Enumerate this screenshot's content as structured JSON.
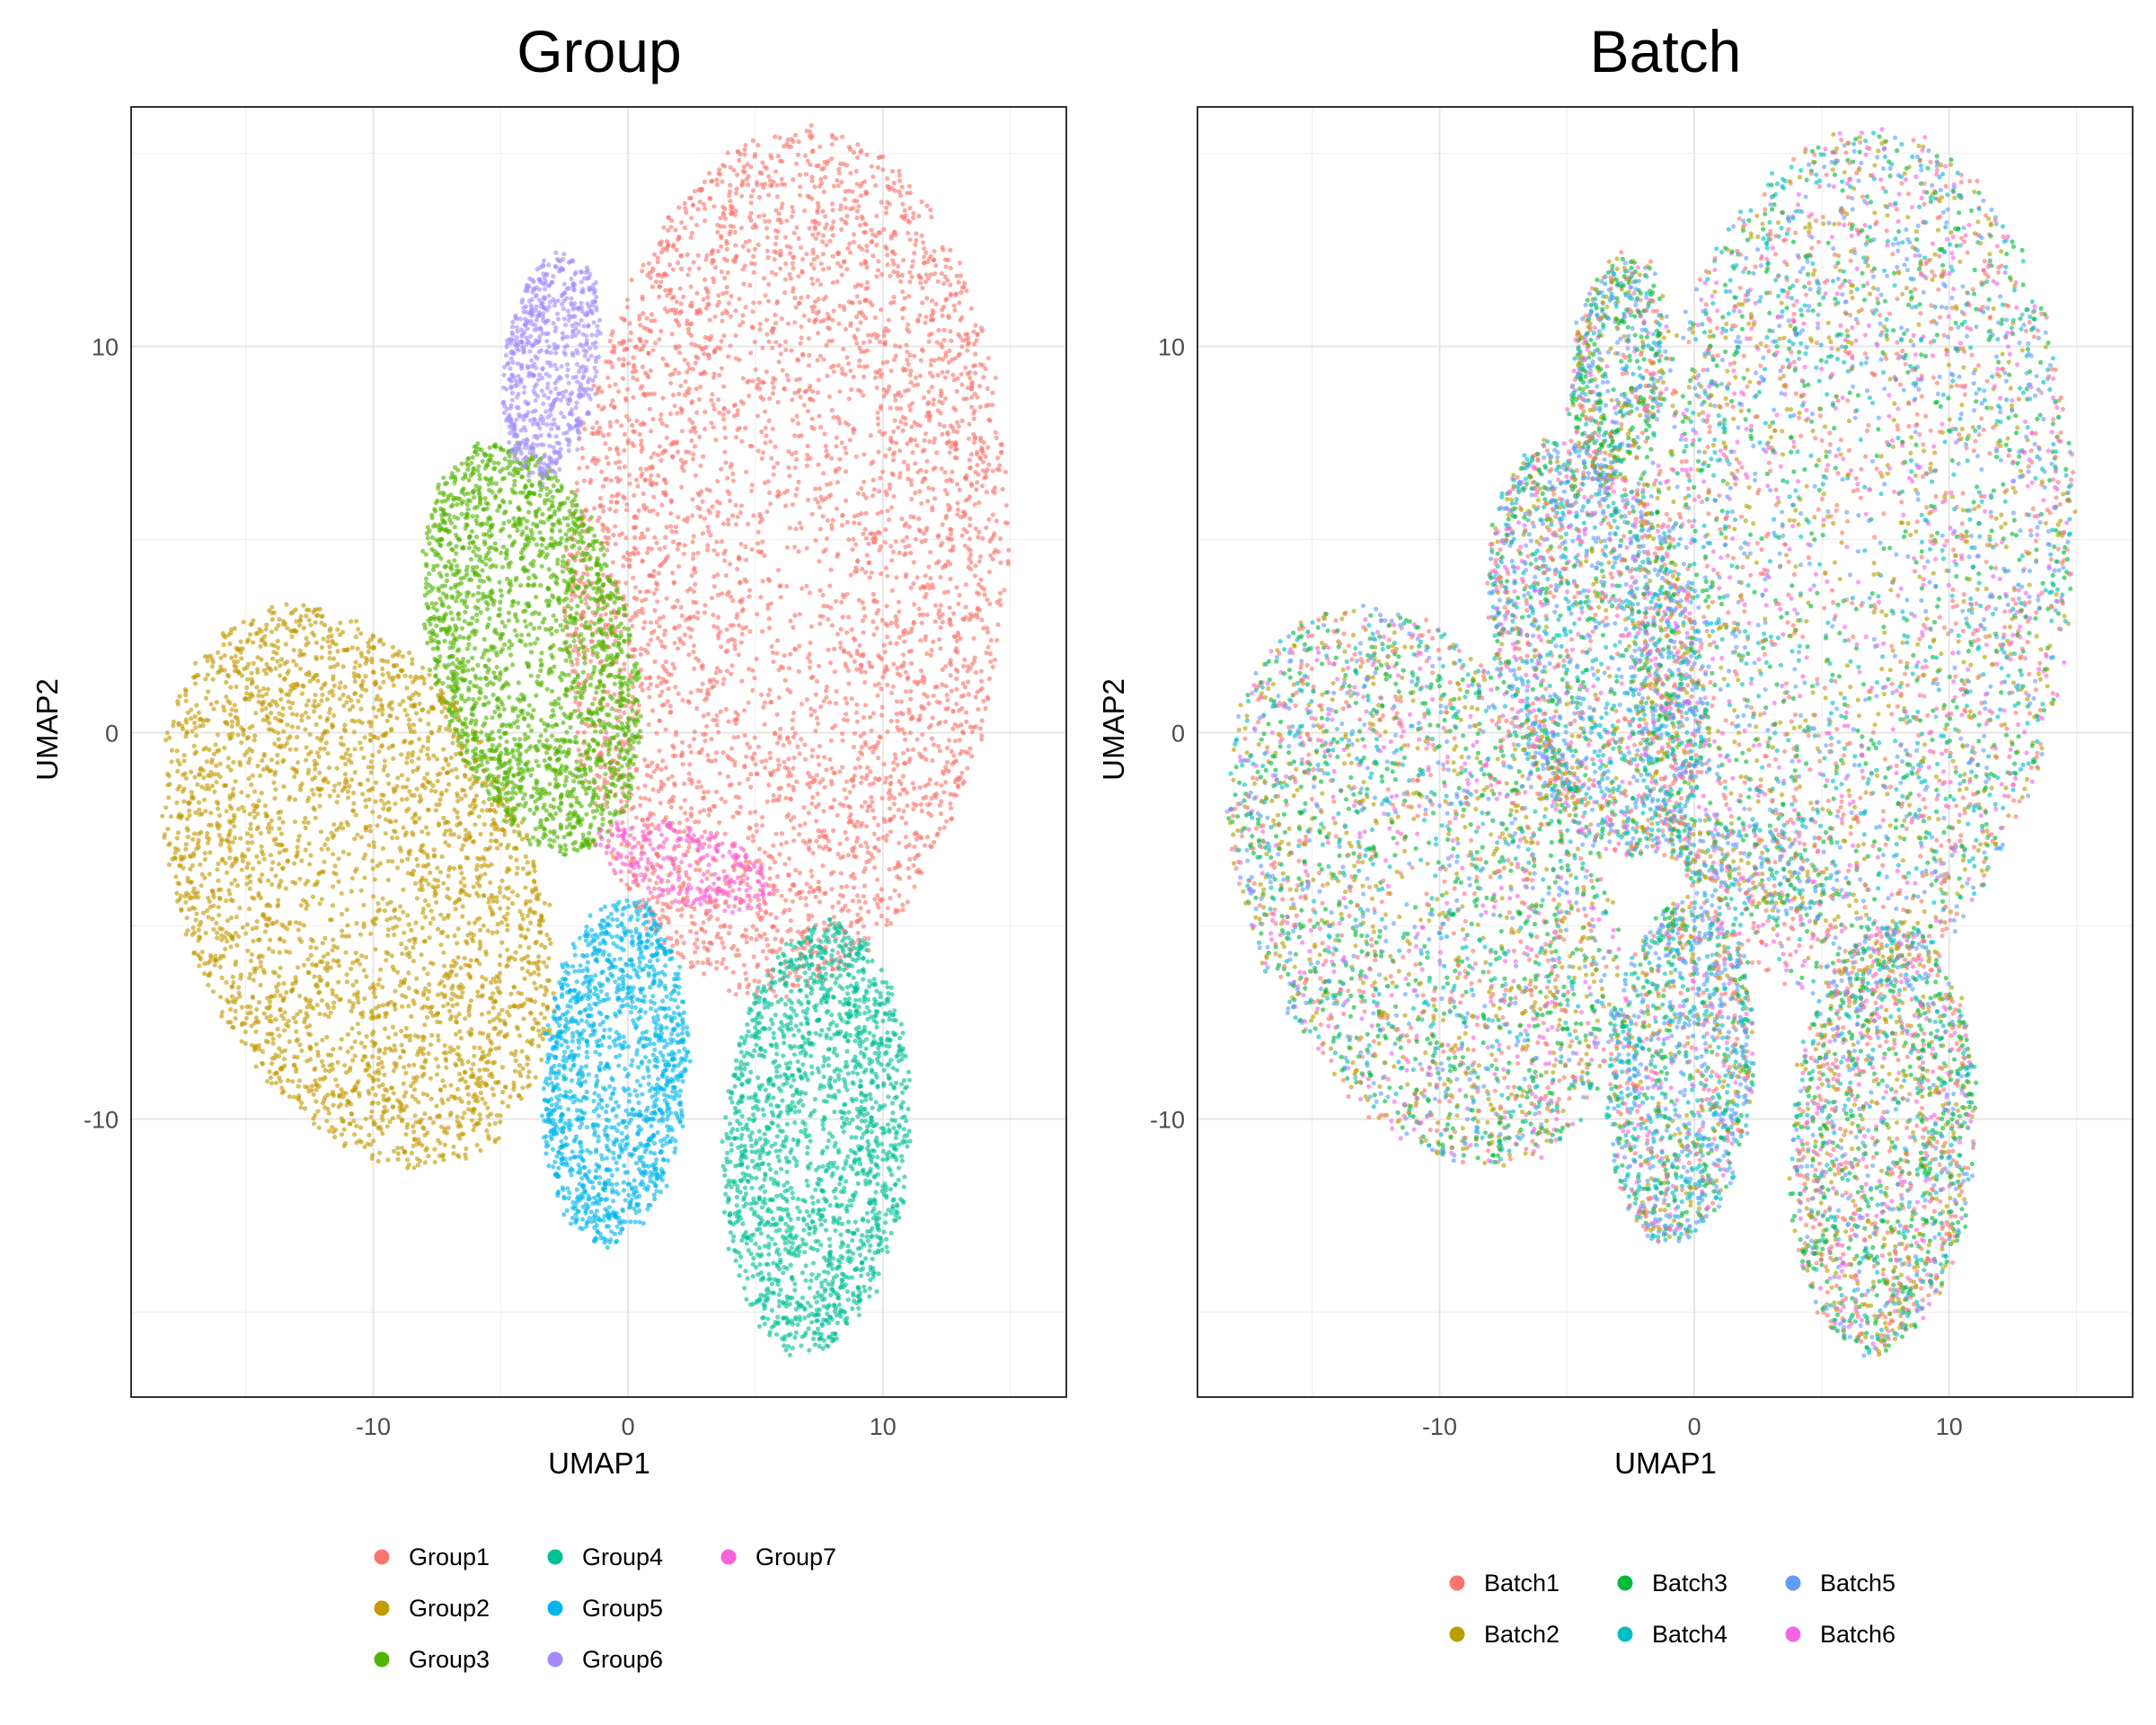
{
  "chart_data": [
    {
      "type": "scatter",
      "title": "Group",
      "xlabel": "UMAP1",
      "ylabel": "UMAP2",
      "xlim": [
        -19.5,
        17.2
      ],
      "ylim": [
        -17.2,
        16.2
      ],
      "x_ticks": [
        -10,
        0,
        10
      ],
      "y_ticks": [
        -10,
        0,
        10
      ],
      "grid": true,
      "legend_position": "bottom",
      "legend_columns": 3,
      "series": [
        {
          "name": "Group1",
          "color": "#F8766D"
        },
        {
          "name": "Group2",
          "color": "#C49A00"
        },
        {
          "name": "Group3",
          "color": "#53B400"
        },
        {
          "name": "Group4",
          "color": "#00C094"
        },
        {
          "name": "Group5",
          "color": "#00B6EB"
        },
        {
          "name": "Group6",
          "color": "#A58AFF"
        },
        {
          "name": "Group7",
          "color": "#FB61D7"
        }
      ],
      "clusters": [
        {
          "series": "Group1",
          "cx": 6.2,
          "cy": 4.4,
          "rx": 8.6,
          "ry": 11.3,
          "rot": -10,
          "n": 4200
        },
        {
          "series": "Group2",
          "cx": -10.6,
          "cy": -4.0,
          "rx": 8.6,
          "ry": 6.1,
          "rot": -40,
          "n": 3000
        },
        {
          "series": "Group3",
          "cx": -3.8,
          "cy": 2.2,
          "rx": 3.8,
          "ry": 5.7,
          "rot": 28,
          "n": 2100
        },
        {
          "series": "Group4",
          "cx": 7.4,
          "cy": -10.5,
          "rx": 3.6,
          "ry": 5.6,
          "rot": -8,
          "n": 1800
        },
        {
          "series": "Group5",
          "cx": -0.5,
          "cy": -8.8,
          "rx": 2.8,
          "ry": 4.5,
          "rot": -8,
          "n": 1400
        },
        {
          "series": "Group6",
          "cx": -3.0,
          "cy": 9.5,
          "rx": 1.8,
          "ry": 3.0,
          "rot": -15,
          "n": 650
        },
        {
          "series": "Group7",
          "cx": 2.2,
          "cy": -3.4,
          "rx": 3.5,
          "ry": 1.0,
          "rot": -12,
          "n": 260
        }
      ]
    },
    {
      "type": "scatter",
      "title": "Batch",
      "xlabel": "UMAP1",
      "ylabel": "UMAP2",
      "xlim": [
        -19.5,
        17.2
      ],
      "ylim": [
        -17.2,
        16.2
      ],
      "x_ticks": [
        -10,
        0,
        10
      ],
      "y_ticks": [
        -10,
        0,
        10
      ],
      "grid": true,
      "legend_position": "bottom",
      "legend_columns": 3,
      "series": [
        {
          "name": "Batch1",
          "color": "#F8766D"
        },
        {
          "name": "Batch2",
          "color": "#B79F00"
        },
        {
          "name": "Batch3",
          "color": "#00BA38"
        },
        {
          "name": "Batch4",
          "color": "#00BFC4"
        },
        {
          "name": "Batch5",
          "color": "#619CFF"
        },
        {
          "name": "Batch6",
          "color": "#F564E3"
        }
      ],
      "clusters": [
        {
          "cx": 6.2,
          "cy": 4.4,
          "rx": 8.6,
          "ry": 11.3,
          "rot": -10,
          "n": 4200,
          "weights": [
            1.3,
            1,
            1.1,
            1,
            1,
            0.9
          ]
        },
        {
          "cx": -10.6,
          "cy": -4.0,
          "rx": 8.6,
          "ry": 6.1,
          "rot": -40,
          "n": 3000,
          "weights": [
            1,
            1.3,
            1.5,
            0.8,
            0.9,
            0.7
          ]
        },
        {
          "cx": -3.8,
          "cy": 2.2,
          "rx": 3.8,
          "ry": 5.7,
          "rot": 28,
          "n": 2100,
          "weights": [
            1,
            0.8,
            0.8,
            1.6,
            1.5,
            0.8
          ]
        },
        {
          "cx": 7.4,
          "cy": -10.5,
          "rx": 3.6,
          "ry": 5.6,
          "rot": -8,
          "n": 1800,
          "weights": [
            1.2,
            1.1,
            1.6,
            0.8,
            0.8,
            0.8
          ]
        },
        {
          "cx": -0.5,
          "cy": -8.8,
          "rx": 2.8,
          "ry": 4.5,
          "rot": -8,
          "n": 1400,
          "weights": [
            0.8,
            0.8,
            0.8,
            1.7,
            1.5,
            0.6
          ]
        },
        {
          "cx": -3.0,
          "cy": 9.5,
          "rx": 1.8,
          "ry": 3.0,
          "rot": -15,
          "n": 650,
          "weights": [
            0.7,
            1.1,
            1.6,
            0.6,
            1.5,
            0.4
          ]
        },
        {
          "cx": 2.2,
          "cy": -3.4,
          "rx": 3.5,
          "ry": 1.0,
          "rot": -12,
          "n": 260,
          "weights": [
            0.6,
            1.4,
            0.8,
            1.2,
            1.8,
            0.3
          ]
        }
      ]
    }
  ]
}
